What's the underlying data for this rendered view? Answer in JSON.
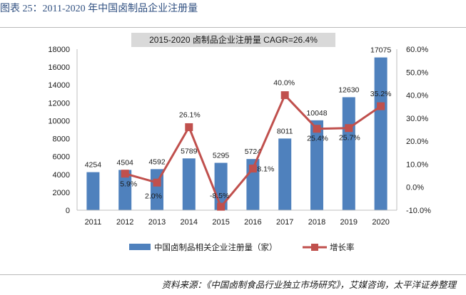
{
  "figure_title": "图表 25：2011-2020 年中国卤制品企业注册量",
  "source_note": "资料来源：《中国卤制食品行业独立市场研究》，艾媒咨询，太平洋证券整理",
  "colors": {
    "bar": "#4f81bd",
    "line": "#c0504d",
    "title_box": "#d9d9d9"
  },
  "chart_data": {
    "type": "bar",
    "title": "2015-2020 卤制品企业注册量 CAGR=26.4%",
    "categories": [
      "2011",
      "2012",
      "2013",
      "2014",
      "2015",
      "2016",
      "2017",
      "2018",
      "2019",
      "2020"
    ],
    "series": [
      {
        "name": "中国卤制品相关企业注册量（家）",
        "type": "bar",
        "axis": "left",
        "values": [
          4254,
          4504,
          4592,
          5789,
          5295,
          5724,
          8011,
          10048,
          12630,
          17075
        ],
        "labels": [
          "4254",
          "4504",
          "4592",
          "5789",
          "5295",
          "5724",
          "8011",
          "10048",
          "12630",
          "17075"
        ]
      },
      {
        "name": "增长率",
        "type": "line",
        "axis": "right",
        "values": [
          null,
          5.9,
          2.0,
          26.1,
          -8.5,
          8.1,
          40.0,
          25.4,
          25.7,
          35.2
        ],
        "labels": [
          "",
          "5.9%",
          "2.0%",
          "26.1%",
          "-8.5%",
          "8.1%",
          "40.0%",
          "25.4%",
          "25.7%",
          "35.2%"
        ]
      }
    ],
    "y_left": {
      "min": 0,
      "max": 18000,
      "step": 2000,
      "ticks": [
        "0",
        "2000",
        "4000",
        "6000",
        "8000",
        "10000",
        "12000",
        "14000",
        "16000",
        "18000"
      ]
    },
    "y_right": {
      "min": -10,
      "max": 60,
      "step": 10,
      "ticks": [
        "-10.0%",
        "0.0%",
        "10.0%",
        "20.0%",
        "30.0%",
        "40.0%",
        "50.0%",
        "60.0%"
      ]
    },
    "legend_position": "bottom",
    "grid": false
  }
}
